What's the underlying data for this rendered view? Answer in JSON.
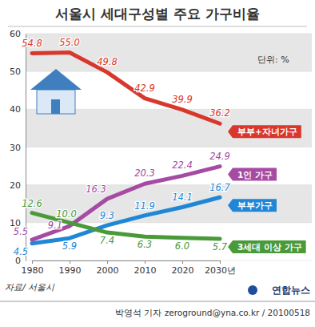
{
  "chart_data": {
    "type": "line",
    "title": "서울시 세대구성별 주요 가구비율",
    "annotations": [
      "단위: %",
      "자료/ 서울시",
      "연합뉴스",
      "박영석 기자 zeroground@yna.co.kr / 20100518"
    ],
    "categories": [
      "1980",
      "1990",
      "2000",
      "2010",
      "2020",
      "2030년"
    ],
    "series": [
      {
        "name": "부부+자녀가구",
        "color": "#d8372c",
        "values": [
          54.8,
          55.0,
          49.8,
          42.9,
          39.9,
          36.2
        ],
        "value_labels": [
          "54.8",
          "55.0",
          "49.8",
          "42.9",
          "39.9",
          "36.2"
        ]
      },
      {
        "name": "1인 가구",
        "color": "#a54ba3",
        "values": [
          5.5,
          9.1,
          16.3,
          20.3,
          22.4,
          24.9
        ],
        "value_labels": [
          "5.5",
          "9.1",
          "16.3",
          "20.3",
          "22.4",
          "24.9"
        ]
      },
      {
        "name": "부부가구",
        "color": "#1f87d6",
        "values": [
          4.5,
          5.9,
          9.3,
          11.9,
          14.1,
          16.7
        ],
        "value_labels": [
          "4.5",
          "5.9",
          "9.3",
          "11.9",
          "14.1",
          "16.7"
        ]
      },
      {
        "name": "3세대 이상 가구",
        "color": "#4a9a3a",
        "values": [
          12.6,
          10.0,
          7.4,
          6.3,
          6.0,
          5.7
        ],
        "value_labels": [
          "12.6",
          "10.0",
          "7.4",
          "6.3",
          "6.0",
          "5.7"
        ]
      }
    ],
    "ylim": [
      0,
      60
    ],
    "yticks": [
      0,
      10,
      20,
      30,
      40,
      50,
      60
    ],
    "grid": true,
    "data_labels": true
  }
}
